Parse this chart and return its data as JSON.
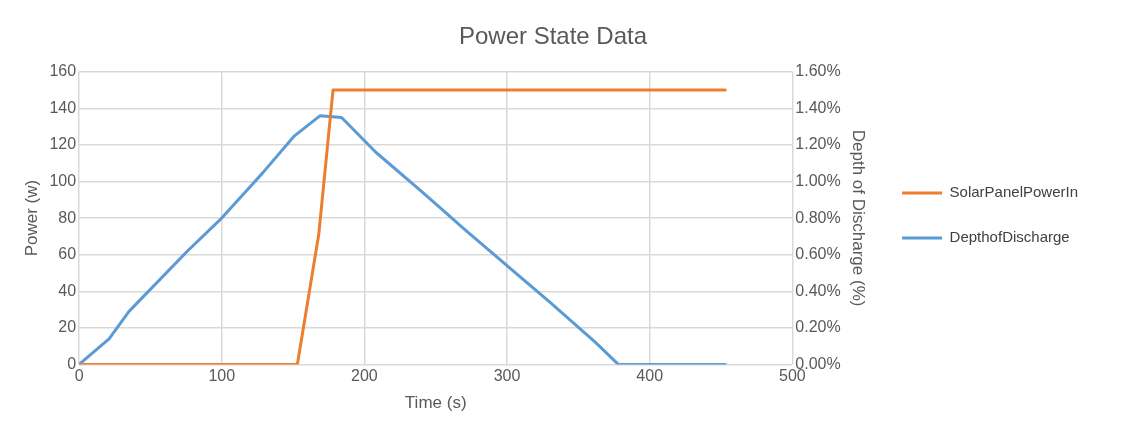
{
  "chart_data": {
    "type": "line",
    "title": "Power State Data",
    "xlabel": "Time (s)",
    "ylabel": "Power (w)",
    "y2label": "Depth of Discharge (%)",
    "xlim": [
      0,
      500
    ],
    "xticks": [
      0,
      100,
      200,
      300,
      400,
      500
    ],
    "ylim": [
      0,
      160
    ],
    "yticks": [
      0,
      20,
      40,
      60,
      80,
      100,
      120,
      140,
      160
    ],
    "y2lim": [
      0,
      1.6
    ],
    "y2ticks": [
      {
        "value": 0,
        "label": "0.00%"
      },
      {
        "value": 0.2,
        "label": "0.20%"
      },
      {
        "value": 0.4,
        "label": "0.40%"
      },
      {
        "value": 0.6,
        "label": "0.60%"
      },
      {
        "value": 0.8,
        "label": "0.80%"
      },
      {
        "value": 1.0,
        "label": "1.00%"
      },
      {
        "value": 1.2,
        "label": "1.20%"
      },
      {
        "value": 1.4,
        "label": "1.40%"
      },
      {
        "value": 1.6,
        "label": "1.60%"
      }
    ],
    "grid": true,
    "legend": "right",
    "marker": "none",
    "line_style": "solid",
    "series": [
      {
        "name": "SolarPanelPowerIn",
        "color": "#ed7d31",
        "x": [
          0,
          153,
          168,
          178,
          453
        ],
        "values": [
          0,
          0,
          71,
          150,
          150
        ]
      },
      {
        "name": "DepthofDischarge",
        "color": "#5b9bd5",
        "axis": "y2",
        "x": [
          0,
          21,
          35,
          76,
          100,
          129,
          151,
          169,
          184,
          208,
          238,
          254,
          270,
          300,
          330,
          362,
          378,
          453
        ],
        "values": [
          0,
          0.14,
          0.29,
          0.62,
          0.8,
          1.05,
          1.25,
          1.36,
          1.35,
          1.16,
          0.96,
          0.85,
          0.74,
          0.54,
          0.34,
          0.12,
          0,
          0
        ]
      }
    ]
  }
}
